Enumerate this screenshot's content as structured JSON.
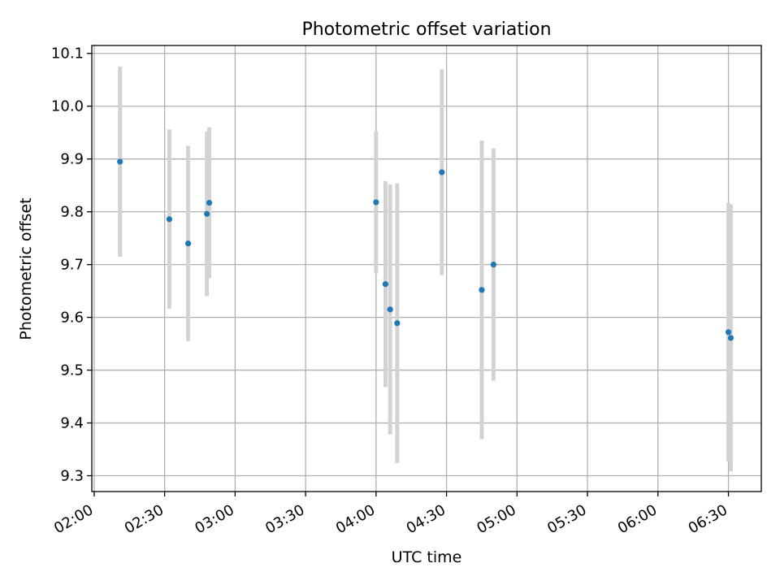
{
  "chart_data": {
    "type": "scatter",
    "title": "Photometric offset variation",
    "xlabel": "UTC time",
    "ylabel": "Photometric offset",
    "x_ticks": [
      "02:00",
      "02:30",
      "03:00",
      "03:30",
      "04:00",
      "04:30",
      "05:00",
      "05:30",
      "06:00",
      "06:30"
    ],
    "x_tick_minutes": [
      120,
      150,
      180,
      210,
      240,
      270,
      300,
      330,
      360,
      390
    ],
    "y_ticks": [
      "9.3",
      "9.4",
      "9.5",
      "9.6",
      "9.7",
      "9.8",
      "9.9",
      "10.0",
      "10.1"
    ],
    "xlim": [
      "01:59",
      "06:44"
    ],
    "ylim": [
      9.27,
      10.115
    ],
    "grid": true,
    "point_color": "#1f77b4",
    "errorbar_color": "#d3d3d3",
    "points": [
      {
        "x": "02:11",
        "y": 9.895,
        "err": 0.18
      },
      {
        "x": "02:32",
        "y": 9.786,
        "err": 0.17
      },
      {
        "x": "02:40",
        "y": 9.74,
        "err": 0.185
      },
      {
        "x": "02:48",
        "y": 9.796,
        "err": 0.156
      },
      {
        "x": "02:49",
        "y": 9.817,
        "err": 0.143
      },
      {
        "x": "04:00",
        "y": 9.818,
        "err": 0.135
      },
      {
        "x": "04:04",
        "y": 9.663,
        "err": 0.195
      },
      {
        "x": "04:06",
        "y": 9.615,
        "err": 0.237
      },
      {
        "x": "04:09",
        "y": 9.589,
        "err": 0.265
      },
      {
        "x": "04:28",
        "y": 9.875,
        "err": 0.195
      },
      {
        "x": "04:45",
        "y": 9.652,
        "err": 0.283
      },
      {
        "x": "04:50",
        "y": 9.7,
        "err": 0.22
      },
      {
        "x": "06:30",
        "y": 9.572,
        "err": 0.245
      },
      {
        "x": "06:31",
        "y": 9.561,
        "err": 0.253
      }
    ]
  }
}
